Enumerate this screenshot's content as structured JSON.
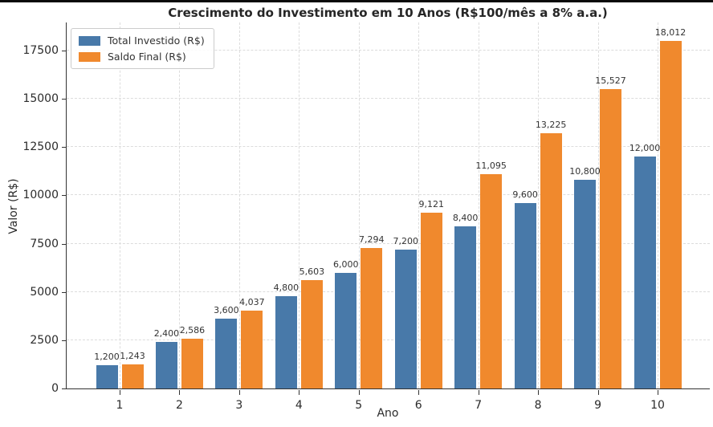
{
  "title": "Crescimento do Investimento em 10 Anos (R$100/mês a 8% a.a.)",
  "chart_data": {
    "type": "bar",
    "categories": [
      "1",
      "2",
      "3",
      "4",
      "5",
      "6",
      "7",
      "8",
      "9",
      "10"
    ],
    "series": [
      {
        "name": "Total Investido (R$)",
        "color": "#4879A9",
        "values": [
          1200,
          2400,
          3600,
          4800,
          6000,
          7200,
          8400,
          9600,
          10800,
          12000
        ],
        "labels": [
          "1,200",
          "2,400",
          "3,600",
          "4,800",
          "6,000",
          "7,200",
          "8,400",
          "9,600",
          "10,800",
          "12,000"
        ]
      },
      {
        "name": "Saldo Final (R$)",
        "color": "#F0892D",
        "values": [
          1243,
          2586,
          4037,
          5603,
          7294,
          9121,
          11095,
          13225,
          15527,
          18012
        ],
        "labels": [
          "1,243",
          "2,586",
          "4,037",
          "5,603",
          "7,294",
          "9,121",
          "11,095",
          "13,225",
          "15,527",
          "18,012"
        ]
      }
    ],
    "title": "Crescimento do Investimento em 10 Anos (R$100/mês a 8% a.a.)",
    "xlabel": "Ano",
    "ylabel": "Valor (R$)",
    "ylim": [
      0,
      19000
    ],
    "yticks": [
      0,
      2500,
      5000,
      7500,
      10000,
      12500,
      15000,
      17500
    ],
    "grid": true,
    "grid_style": "dashed",
    "legend_position": "upper left"
  }
}
